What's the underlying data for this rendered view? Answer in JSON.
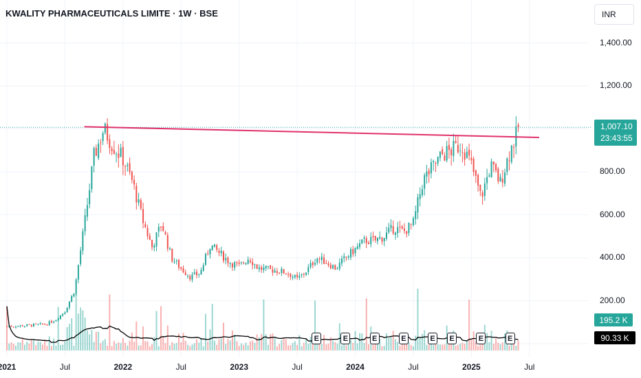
{
  "title": "KWALITY PHARMACEUTICALS LIMITE · 1W · BSE",
  "currency": "INR",
  "price_axis": [
    "1,400.00",
    "1,200.00",
    "1,000.00",
    "800.00",
    "600.00",
    "400.00",
    "200.00"
  ],
  "time_axis": [
    {
      "label": "2021",
      "bold": true
    },
    {
      "label": "Jul",
      "bold": false
    },
    {
      "label": "2022",
      "bold": true
    },
    {
      "label": "Jul",
      "bold": false
    },
    {
      "label": "2023",
      "bold": true
    },
    {
      "label": "Jul",
      "bold": false
    },
    {
      "label": "2024",
      "bold": true
    },
    {
      "label": "Jul",
      "bold": false
    },
    {
      "label": "2025",
      "bold": true
    },
    {
      "label": "Jul",
      "bold": false
    }
  ],
  "last_price": "1,007.10",
  "countdown": "23:43:55",
  "volume_label": "195.2 K",
  "volume_ma_label": "90.33 K",
  "earnings_marker": "E",
  "colors": {
    "up": "#26a69a",
    "down": "#ef5350",
    "trendline": "#e0306a",
    "volume_ma": "#000000",
    "grid": "#f0f3fa"
  },
  "chart_data": {
    "type": "candlestick",
    "title": "KWALITY PHARMACEUTICALS LIMITE · 1W · BSE",
    "timeframe": "1W",
    "exchange": "BSE",
    "y_axis": {
      "min": 0,
      "max": 1400,
      "ticks": [
        200,
        400,
        600,
        800,
        1000,
        1200,
        1400
      ]
    },
    "x_axis": {
      "start": "2021-01",
      "end": "2025-07",
      "ticks": [
        "2021",
        "Jul",
        "2022",
        "Jul",
        "2023",
        "Jul",
        "2024",
        "Jul",
        "2025",
        "Jul"
      ]
    },
    "last_price": 1007.1,
    "close_path": [
      [
        "2021-01",
        80
      ],
      [
        "2021-03",
        85
      ],
      [
        "2021-05",
        90
      ],
      [
        "2021-06",
        110
      ],
      [
        "2021-07",
        150
      ],
      [
        "2021-08",
        250
      ],
      [
        "2021-09",
        550
      ],
      [
        "2021-10",
        870
      ],
      [
        "2021-11",
        1000
      ],
      [
        "2021-12",
        920
      ],
      [
        "2022-01",
        860
      ],
      [
        "2022-02",
        750
      ],
      [
        "2022-03",
        580
      ],
      [
        "2022-04",
        450
      ],
      [
        "2022-05",
        560
      ],
      [
        "2022-06",
        400
      ],
      [
        "2022-07",
        350
      ],
      [
        "2022-08",
        310
      ],
      [
        "2022-09",
        330
      ],
      [
        "2022-10",
        460
      ],
      [
        "2022-11",
        420
      ],
      [
        "2022-12",
        380
      ],
      [
        "2023-01",
        360
      ],
      [
        "2023-02",
        400
      ],
      [
        "2023-03",
        350
      ],
      [
        "2023-05",
        340
      ],
      [
        "2023-06",
        330
      ],
      [
        "2023-07",
        300
      ],
      [
        "2023-08",
        340
      ],
      [
        "2023-09",
        400
      ],
      [
        "2023-10",
        380
      ],
      [
        "2023-11",
        350
      ],
      [
        "2023-12",
        400
      ],
      [
        "2024-02",
        480
      ],
      [
        "2024-03",
        480
      ],
      [
        "2024-04",
        500
      ],
      [
        "2024-05",
        540
      ],
      [
        "2024-06",
        520
      ],
      [
        "2024-07",
        560
      ],
      [
        "2024-08",
        760
      ],
      [
        "2024-09",
        820
      ],
      [
        "2024-10",
        880
      ],
      [
        "2024-11",
        900
      ],
      [
        "2024-12",
        930
      ],
      [
        "2025-01",
        830
      ],
      [
        "2025-02",
        680
      ],
      [
        "2025-03",
        830
      ],
      [
        "2025-04",
        750
      ],
      [
        "2025-05",
        900
      ],
      [
        "2025-06",
        1007
      ]
    ],
    "trendline": {
      "from": {
        "date": "2021-09",
        "price": 1010
      },
      "to": {
        "date": "2025-08",
        "price": 960
      }
    },
    "volume_ma_last": "90.33 K",
    "volume_last": "195.2 K",
    "earnings_events": [
      "2023-09",
      "2023-12",
      "2024-03",
      "2024-06",
      "2024-09",
      "2024-11",
      "2025-02",
      "2025-05"
    ]
  }
}
